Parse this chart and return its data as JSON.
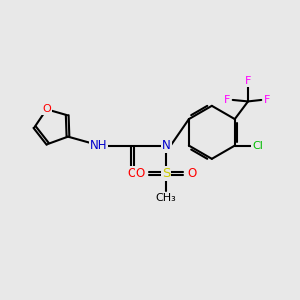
{
  "bg_color": "#e8e8e8",
  "atom_colors": {
    "C": "#000000",
    "N": "#0000cc",
    "O": "#ff0000",
    "S": "#cccc00",
    "F": "#ff00ff",
    "Cl": "#00bb00",
    "H": "#606060"
  },
  "bond_color": "#000000",
  "bond_width": 1.5,
  "dbo": 0.055
}
